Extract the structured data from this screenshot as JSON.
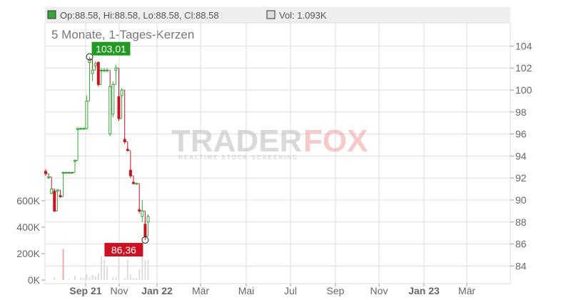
{
  "header": {
    "ohlc": "Op:88.58, Hi:88.58, Lo:88.58, Cl:88.58",
    "volume": "Vol: 1.093K"
  },
  "subtitle": "5 Monate, 1-Tages-Kerzen",
  "watermark": {
    "brand_left": "TRADER",
    "brand_right": "FOX",
    "tagline": "REALTIME STOCK SCREENING"
  },
  "colors": {
    "up": "#3aa53a",
    "down": "#cc1122",
    "high_label_bg": "#229922",
    "low_label_bg": "#cc1122",
    "volume": "#dddddd",
    "volume_down": "#f2aaaa",
    "grid": "#dddddd",
    "header_bg": "#eeeeee"
  },
  "chart_data": {
    "type": "candlestick",
    "subtitle": "5 Monate, 1-Tages-Kerzen",
    "price_axis": {
      "position": "right",
      "range": [
        82,
        106
      ],
      "ticks": [
        84,
        86,
        88,
        90,
        92,
        94,
        96,
        98,
        100,
        102,
        104
      ]
    },
    "volume_axis": {
      "position": "left",
      "range": [
        0,
        700000
      ],
      "ticks": [
        0,
        200000,
        400000,
        600000
      ],
      "tick_labels": [
        "0K",
        "200K",
        "400K",
        "600K"
      ]
    },
    "x_axis": {
      "tick_labels": [
        "Sep 21",
        "Nov",
        "Jan 22",
        "Mär",
        "Mai",
        "Jul",
        "Sep",
        "Nov",
        "Jan 23",
        "Mär"
      ],
      "bold_labels": [
        "Sep 21",
        "Jan 22",
        "Jan 23"
      ]
    },
    "annotations": [
      {
        "label": "103,01",
        "value": 103.01,
        "type": "high",
        "day": 15
      },
      {
        "label": "86,36",
        "value": 86.36,
        "type": "low",
        "day": 34
      }
    ],
    "candles": [
      {
        "day": 0,
        "o": 92.6,
        "h": 92.8,
        "l": 92.2,
        "c": 92.4
      },
      {
        "day": 1,
        "o": 92.1,
        "h": 92.3,
        "l": 91.9,
        "c": 92.1
      },
      {
        "day": 2,
        "o": 90.6,
        "h": 91.1,
        "l": 90.5,
        "c": 91.0
      },
      {
        "day": 3,
        "o": 90.8,
        "h": 91.0,
        "l": 88.9,
        "c": 89.0
      },
      {
        "day": 4,
        "o": 90.8,
        "h": 91.0,
        "l": 90.6,
        "c": 90.9
      },
      {
        "day": 5,
        "o": 90.4,
        "h": 90.6,
        "l": 90.2,
        "c": 90.3
      },
      {
        "day": 6,
        "o": 92.5,
        "h": 92.6,
        "l": 92.4,
        "c": 92.5
      },
      {
        "day": 7,
        "o": 92.5,
        "h": 92.6,
        "l": 92.4,
        "c": 92.5
      },
      {
        "day": 8,
        "o": 92.5,
        "h": 92.6,
        "l": 92.4,
        "c": 92.5
      },
      {
        "day": 9,
        "o": 92.5,
        "h": 92.6,
        "l": 92.4,
        "c": 92.5
      },
      {
        "day": 10,
        "o": 93.5,
        "h": 93.7,
        "l": 93.4,
        "c": 93.6
      },
      {
        "day": 11,
        "o": 96.4,
        "h": 96.6,
        "l": 96.3,
        "c": 96.5
      },
      {
        "day": 12,
        "o": 96.5,
        "h": 96.6,
        "l": 96.4,
        "c": 96.5
      },
      {
        "day": 13,
        "o": 96.5,
        "h": 96.6,
        "l": 96.4,
        "c": 96.5
      },
      {
        "day": 14,
        "o": 96.5,
        "h": 99.5,
        "l": 96.4,
        "c": 99.0
      },
      {
        "day": 15,
        "o": 102.5,
        "h": 103.01,
        "l": 101.5,
        "c": 102.8
      },
      {
        "day": 16,
        "o": 101.5,
        "h": 102.0,
        "l": 100.8,
        "c": 101.8
      },
      {
        "day": 17,
        "o": 102.2,
        "h": 102.6,
        "l": 102.0,
        "c": 102.4
      },
      {
        "day": 18,
        "o": 102.5,
        "h": 102.6,
        "l": 100.3,
        "c": 100.5
      },
      {
        "day": 19,
        "o": 101.8,
        "h": 102.0,
        "l": 101.6,
        "c": 101.8
      },
      {
        "day": 20,
        "o": 101.8,
        "h": 102.0,
        "l": 101.6,
        "c": 101.8
      },
      {
        "day": 21,
        "o": 101.8,
        "h": 102.0,
        "l": 101.6,
        "c": 101.8
      },
      {
        "day": 22,
        "o": 96.0,
        "h": 100.5,
        "l": 95.8,
        "c": 100.3
      },
      {
        "day": 23,
        "o": 97.8,
        "h": 100.8,
        "l": 97.5,
        "c": 100.5
      },
      {
        "day": 24,
        "o": 101.8,
        "h": 102.3,
        "l": 101.6,
        "c": 102.0
      },
      {
        "day": 25,
        "o": 99.4,
        "h": 99.6,
        "l": 97.2,
        "c": 97.4
      },
      {
        "day": 26,
        "o": 99.5,
        "h": 100.2,
        "l": 99.3,
        "c": 100.0
      },
      {
        "day": 27,
        "o": 95.5,
        "h": 95.7,
        "l": 95.1,
        "c": 95.3
      },
      {
        "day": 28,
        "o": 94.6,
        "h": 94.8,
        "l": 94.4,
        "c": 94.5
      },
      {
        "day": 29,
        "o": 92.7,
        "h": 92.9,
        "l": 92.0,
        "c": 92.2
      },
      {
        "day": 30,
        "o": 91.6,
        "h": 91.8,
        "l": 91.4,
        "c": 91.5
      },
      {
        "day": 31,
        "o": 91.5,
        "h": 91.6,
        "l": 91.4,
        "c": 91.5
      },
      {
        "day": 32,
        "o": 89.1,
        "h": 89.3,
        "l": 88.8,
        "c": 89.0
      },
      {
        "day": 33,
        "o": 88.5,
        "h": 90.0,
        "l": 88.0,
        "c": 89.0
      },
      {
        "day": 34,
        "o": 87.8,
        "h": 88.2,
        "l": 86.36,
        "c": 86.7
      },
      {
        "day": 35,
        "o": 88.0,
        "h": 88.7,
        "l": 86.8,
        "c": 88.5
      }
    ],
    "volumes": [
      {
        "day": 3,
        "v": 20000
      },
      {
        "day": 6,
        "v": 235000
      },
      {
        "day": 8,
        "v": 8000
      },
      {
        "day": 10,
        "v": 30000
      },
      {
        "day": 12,
        "v": 20000
      },
      {
        "day": 13,
        "v": 15000
      },
      {
        "day": 14,
        "v": 45000
      },
      {
        "day": 15,
        "v": 20000
      },
      {
        "day": 16,
        "v": 40000
      },
      {
        "day": 17,
        "v": 30000
      },
      {
        "day": 18,
        "v": 50000
      },
      {
        "day": 19,
        "v": 180000
      },
      {
        "day": 20,
        "v": 155000
      },
      {
        "day": 21,
        "v": 110000
      },
      {
        "day": 23,
        "v": 20000
      },
      {
        "day": 24,
        "v": 25000
      },
      {
        "day": 25,
        "v": 190000
      },
      {
        "day": 27,
        "v": 15000
      },
      {
        "day": 28,
        "v": 150000
      },
      {
        "day": 29,
        "v": 40000
      },
      {
        "day": 30,
        "v": 10000
      },
      {
        "day": 31,
        "v": 15000
      },
      {
        "day": 32,
        "v": 80000
      },
      {
        "day": 33,
        "v": 220000
      },
      {
        "day": 34,
        "v": 150000
      },
      {
        "day": 35,
        "v": 155000
      }
    ]
  }
}
